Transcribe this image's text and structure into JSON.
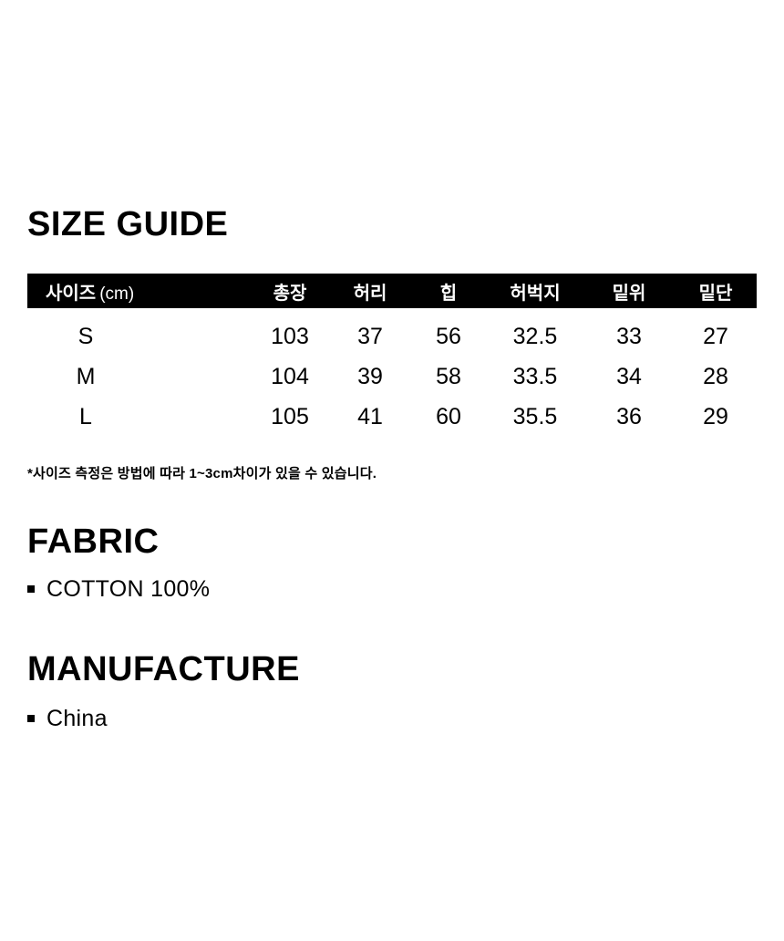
{
  "page": {
    "background": "#ffffff",
    "text_color": "#000000"
  },
  "size_guide": {
    "title": "SIZE GUIDE",
    "table": {
      "header": {
        "size_label": "사이즈",
        "unit": "(cm)",
        "columns": [
          "총장",
          "허리",
          "힙",
          "허벅지",
          "밑위",
          "밑단"
        ],
        "bg": "#000000",
        "text_color": "#ffffff"
      },
      "rows": [
        {
          "size": "S",
          "values": [
            "103",
            "37",
            "56",
            "32.5",
            "33",
            "27"
          ]
        },
        {
          "size": "M",
          "values": [
            "104",
            "39",
            "58",
            "33.5",
            "34",
            "28"
          ]
        },
        {
          "size": "L",
          "values": [
            "105",
            "41",
            "60",
            "35.5",
            "36",
            "29"
          ]
        }
      ]
    },
    "footnote": "*사이즈 측정은 방법에 따라 1~3cm차이가 있을 수 있습니다."
  },
  "fabric": {
    "title": "FABRIC",
    "items": [
      "COTTON 100%"
    ]
  },
  "manufacture": {
    "title": "MANUFACTURE",
    "items": [
      "China"
    ]
  }
}
